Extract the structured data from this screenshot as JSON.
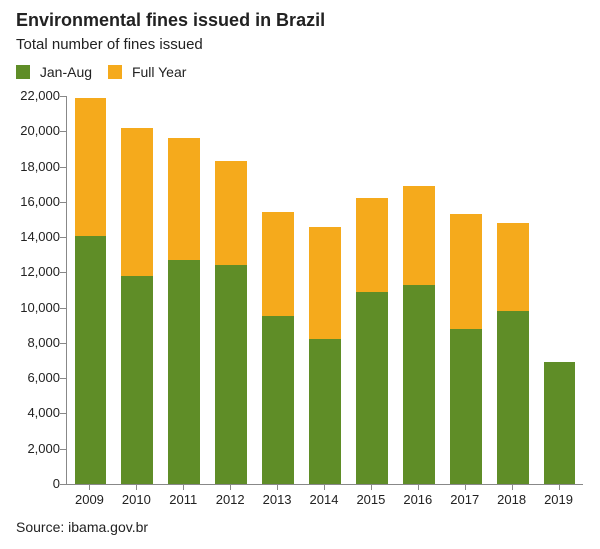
{
  "title": "Environmental fines issued in Brazil",
  "subtitle": "Total number of fines issued",
  "title_fontsize": 18,
  "subtitle_fontsize": 15,
  "source_label": "Source: ibama.gov.br",
  "legend": [
    {
      "label": "Jan-Aug",
      "color": "#5f8d27"
    },
    {
      "label": "Full Year",
      "color": "#f5aa1c"
    }
  ],
  "chart": {
    "type": "stacked-bar",
    "background_color": "#ffffff",
    "axis_color": "#888888",
    "label_color": "#222222",
    "ylim": [
      0,
      22000
    ],
    "ytick_step": 2000,
    "yticks": [
      0,
      2000,
      4000,
      6000,
      8000,
      10000,
      12000,
      14000,
      16000,
      18000,
      20000,
      22000
    ],
    "categories": [
      "2009",
      "2010",
      "2011",
      "2012",
      "2013",
      "2014",
      "2015",
      "2016",
      "2017",
      "2018",
      "2019"
    ],
    "series": [
      {
        "name": "Jan-Aug",
        "color": "#5f8d27",
        "values": [
          14050,
          11800,
          12700,
          12400,
          9500,
          8200,
          10900,
          11300,
          8800,
          9800,
          6900
        ]
      },
      {
        "name": "Full Year (remainder)",
        "color": "#f5aa1c",
        "values": [
          7850,
          8400,
          6900,
          5900,
          5900,
          6400,
          5300,
          5600,
          6500,
          5000,
          0
        ]
      }
    ],
    "totals": [
      21900,
      20200,
      19600,
      18300,
      15400,
      14600,
      16200,
      16900,
      15300,
      14800,
      6900
    ],
    "bar_width_ratio": 0.68,
    "label_fontsize": 13
  }
}
